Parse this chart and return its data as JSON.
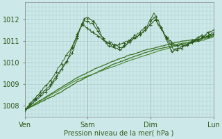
{
  "bg_color": "#cce8e8",
  "grid_color": "#aacccc",
  "x_labels": [
    "Ven",
    "Sam",
    "Dim",
    "Lun"
  ],
  "xlabel": "Pression niveau de la mer( hPa )",
  "ylim": [
    1007.5,
    1012.8
  ],
  "yticks": [
    1008,
    1009,
    1010,
    1011,
    1012
  ],
  "total_points": 217,
  "dark_green": "#2d5a1b",
  "mid_green": "#3a7022",
  "light_green": "#4a8a30"
}
